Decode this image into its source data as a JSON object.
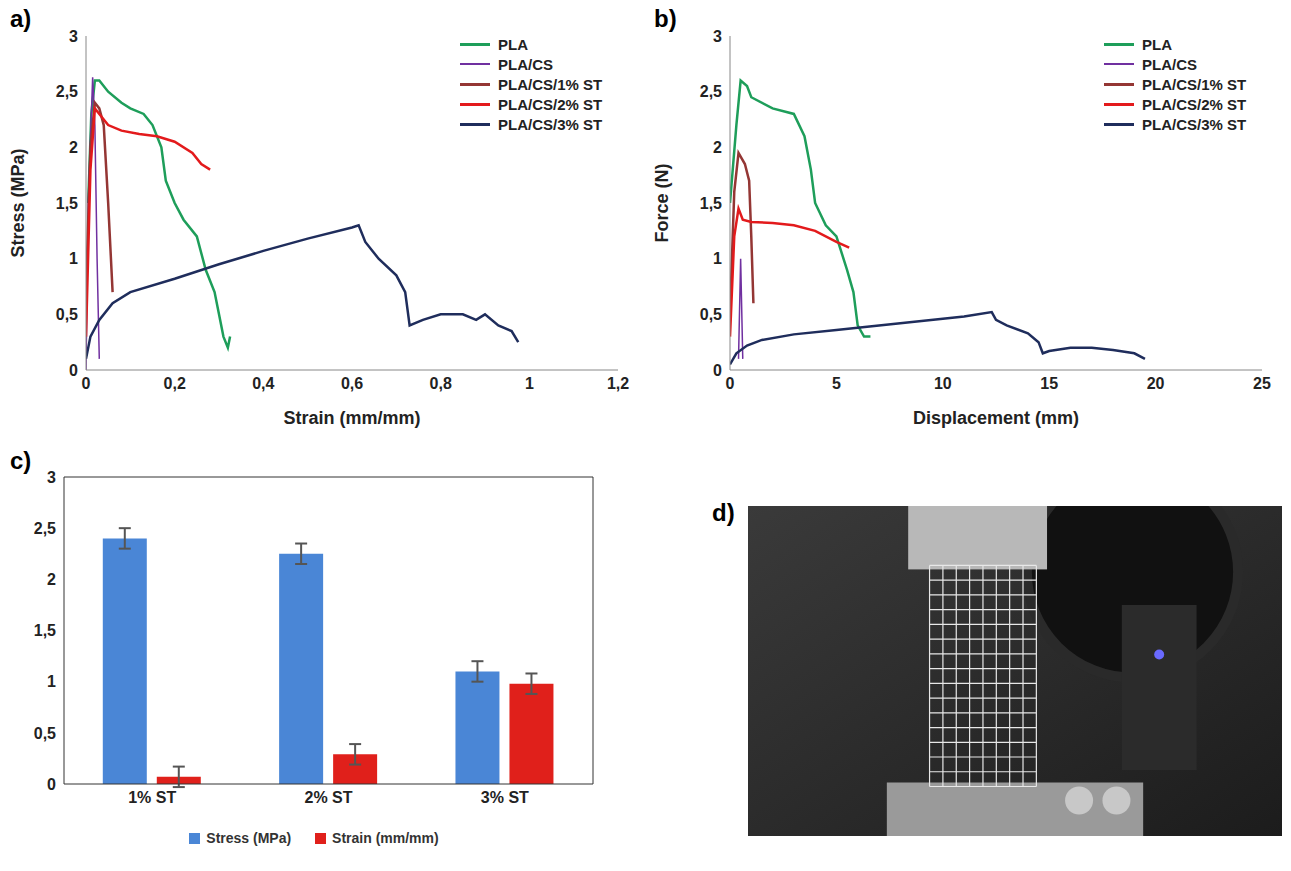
{
  "chart_data": [
    {
      "panel": "a)",
      "type": "line",
      "xlabel": "Strain (mm/mm)",
      "ylabel": "Stress (MPa)",
      "xlim": [
        0,
        1.2
      ],
      "xticks": [
        0,
        {
          "value": 0.2,
          "label": "0,2"
        },
        {
          "value": 0.4,
          "label": "0,4"
        },
        {
          "value": 0.6,
          "label": "0,6"
        },
        {
          "value": 0.8,
          "label": "0,8"
        },
        1,
        {
          "value": 1.2,
          "label": "1,2"
        }
      ],
      "ylim": [
        0,
        3
      ],
      "yticks": [
        0,
        {
          "value": 0.5,
          "label": "0,5"
        },
        1,
        {
          "value": 1.5,
          "label": "1,5"
        },
        2,
        {
          "value": 2.5,
          "label": "2,5"
        },
        3
      ],
      "grid": false,
      "legend": "upper right",
      "series": [
        {
          "name": "PLA",
          "color": "#1e9e5a",
          "x": [
            0.005,
            0.012,
            0.02,
            0.03,
            0.05,
            0.08,
            0.1,
            0.13,
            0.15,
            0.17,
            0.18,
            0.2,
            0.22,
            0.25,
            0.27,
            0.29,
            0.3,
            0.31,
            0.32,
            0.325
          ],
          "values": [
            1.5,
            2.3,
            2.6,
            2.6,
            2.5,
            2.4,
            2.35,
            2.3,
            2.2,
            2.0,
            1.7,
            1.5,
            1.35,
            1.2,
            0.9,
            0.7,
            0.5,
            0.3,
            0.2,
            0.3
          ]
        },
        {
          "name": "PLA/CS",
          "color": "#7030a0",
          "x": [
            0,
            0.005,
            0.015,
            0.02,
            0.025,
            0.03
          ],
          "values": [
            0,
            1.5,
            2.63,
            2.2,
            1.0,
            0.1
          ]
        },
        {
          "name": "PLA/CS/1% ST",
          "color": "#943634",
          "x": [
            0,
            0.01,
            0.02,
            0.03,
            0.04,
            0.05,
            0.06
          ],
          "values": [
            0.7,
            2.0,
            2.4,
            2.35,
            2.2,
            1.5,
            0.7
          ]
        },
        {
          "name": "PLA/CS/2% ST",
          "color": "#e31a1c",
          "x": [
            0,
            0.01,
            0.02,
            0.03,
            0.05,
            0.08,
            0.12,
            0.16,
            0.2,
            0.24,
            0.26,
            0.28
          ],
          "values": [
            0.3,
            1.8,
            2.35,
            2.3,
            2.2,
            2.15,
            2.12,
            2.1,
            2.05,
            1.95,
            1.85,
            1.8
          ]
        },
        {
          "name": "PLA/CS/3% ST",
          "color": "#1f2d5c",
          "x": [
            0,
            0.01,
            0.03,
            0.06,
            0.1,
            0.2,
            0.3,
            0.4,
            0.5,
            0.6,
            0.615,
            0.63,
            0.66,
            0.7,
            0.72,
            0.73,
            0.76,
            0.8,
            0.85,
            0.88,
            0.9,
            0.93,
            0.96,
            0.975
          ],
          "values": [
            0.1,
            0.3,
            0.45,
            0.6,
            0.7,
            0.82,
            0.95,
            1.07,
            1.18,
            1.28,
            1.3,
            1.15,
            1.0,
            0.85,
            0.7,
            0.4,
            0.45,
            0.5,
            0.5,
            0.45,
            0.5,
            0.4,
            0.35,
            0.25
          ]
        }
      ]
    },
    {
      "panel": "b)",
      "type": "line",
      "xlabel": "Displacement (mm)",
      "ylabel": "Force (N)",
      "xlim": [
        0,
        25
      ],
      "xticks": [
        0,
        5,
        10,
        15,
        20,
        25
      ],
      "ylim": [
        0,
        3
      ],
      "yticks": [
        0,
        {
          "value": 0.5,
          "label": "0,5"
        },
        1,
        {
          "value": 1.5,
          "label": "1,5"
        },
        2,
        {
          "value": 2.5,
          "label": "2,5"
        },
        3
      ],
      "grid": false,
      "legend": "upper right",
      "series": [
        {
          "name": "PLA",
          "color": "#1e9e5a",
          "x": [
            0,
            0.3,
            0.5,
            0.8,
            1,
            2,
            3,
            3.5,
            3.8,
            4,
            4.5,
            5,
            5.5,
            5.8,
            6,
            6.3,
            6.6
          ],
          "values": [
            1.5,
            2.2,
            2.6,
            2.55,
            2.45,
            2.35,
            2.3,
            2.1,
            1.8,
            1.5,
            1.3,
            1.2,
            0.9,
            0.7,
            0.4,
            0.3,
            0.3
          ]
        },
        {
          "name": "PLA/CS",
          "color": "#7030a0",
          "x": [
            0.4,
            0.5,
            0.6
          ],
          "values": [
            0.1,
            1.0,
            0.1
          ]
        },
        {
          "name": "PLA/CS/1% ST",
          "color": "#943634",
          "x": [
            0,
            0.2,
            0.4,
            0.7,
            0.9,
            1.0,
            1.1
          ],
          "values": [
            0.5,
            1.6,
            1.95,
            1.85,
            1.7,
            1.2,
            0.6
          ]
        },
        {
          "name": "PLA/CS/2% ST",
          "color": "#e31a1c",
          "x": [
            0,
            0.2,
            0.4,
            0.6,
            1,
            2,
            3,
            4,
            5,
            5.6
          ],
          "values": [
            0.3,
            1.2,
            1.45,
            1.35,
            1.33,
            1.32,
            1.3,
            1.25,
            1.15,
            1.1
          ]
        },
        {
          "name": "PLA/CS/3% ST",
          "color": "#1f2d5c",
          "x": [
            0,
            0.3,
            0.8,
            1.5,
            3,
            5,
            7,
            9,
            11,
            12.3,
            12.5,
            13,
            14,
            14.5,
            14.7,
            15,
            16,
            17,
            18,
            19,
            19.5
          ],
          "values": [
            0.05,
            0.15,
            0.22,
            0.27,
            0.32,
            0.36,
            0.4,
            0.44,
            0.48,
            0.52,
            0.45,
            0.4,
            0.33,
            0.25,
            0.15,
            0.17,
            0.2,
            0.2,
            0.18,
            0.15,
            0.1
          ]
        }
      ]
    },
    {
      "panel": "c)",
      "type": "bar",
      "categories": [
        "1% ST",
        "2% ST",
        "3% ST"
      ],
      "ylim": [
        0,
        3
      ],
      "yticks": [
        0,
        {
          "value": 0.5,
          "label": "0,5"
        },
        1,
        {
          "value": 1.5,
          "label": "1,5"
        },
        2,
        {
          "value": 2.5,
          "label": "2,5"
        },
        3
      ],
      "grid": false,
      "legend": "bottom",
      "series": [
        {
          "name": "Stress (MPa)",
          "color": "#4a86d6",
          "values": [
            2.4,
            2.25,
            1.1
          ],
          "errors": [
            0.1,
            0.1,
            0.1
          ]
        },
        {
          "name": "Strain (mm/mm)",
          "color": "#e0201b",
          "values": [
            0.07,
            0.29,
            0.98
          ],
          "errors": [
            0.1,
            0.1,
            0.1
          ]
        }
      ]
    },
    {
      "panel": "d)",
      "type": "image"
    }
  ]
}
